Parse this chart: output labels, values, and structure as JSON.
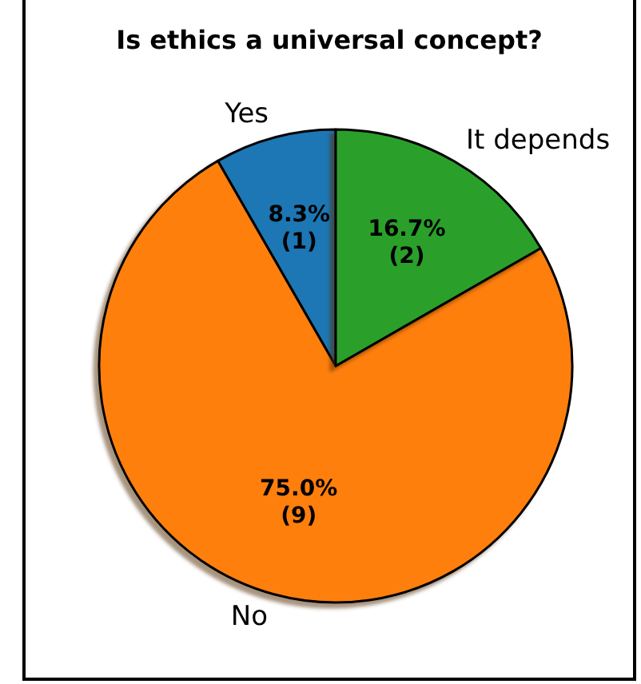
{
  "chart_data": {
    "type": "pie",
    "title": "Is ethics a universal concept?",
    "categories": [
      "Yes",
      "No",
      "It depends"
    ],
    "values": [
      8.3,
      75.0,
      16.7
    ],
    "value_labels": [
      "8.3%\n(1)",
      "75.0%\n(9)",
      "16.7%\n(2)"
    ],
    "colors": [
      "#1f77b4",
      "#ff7f0e",
      "#2ca02c"
    ]
  }
}
